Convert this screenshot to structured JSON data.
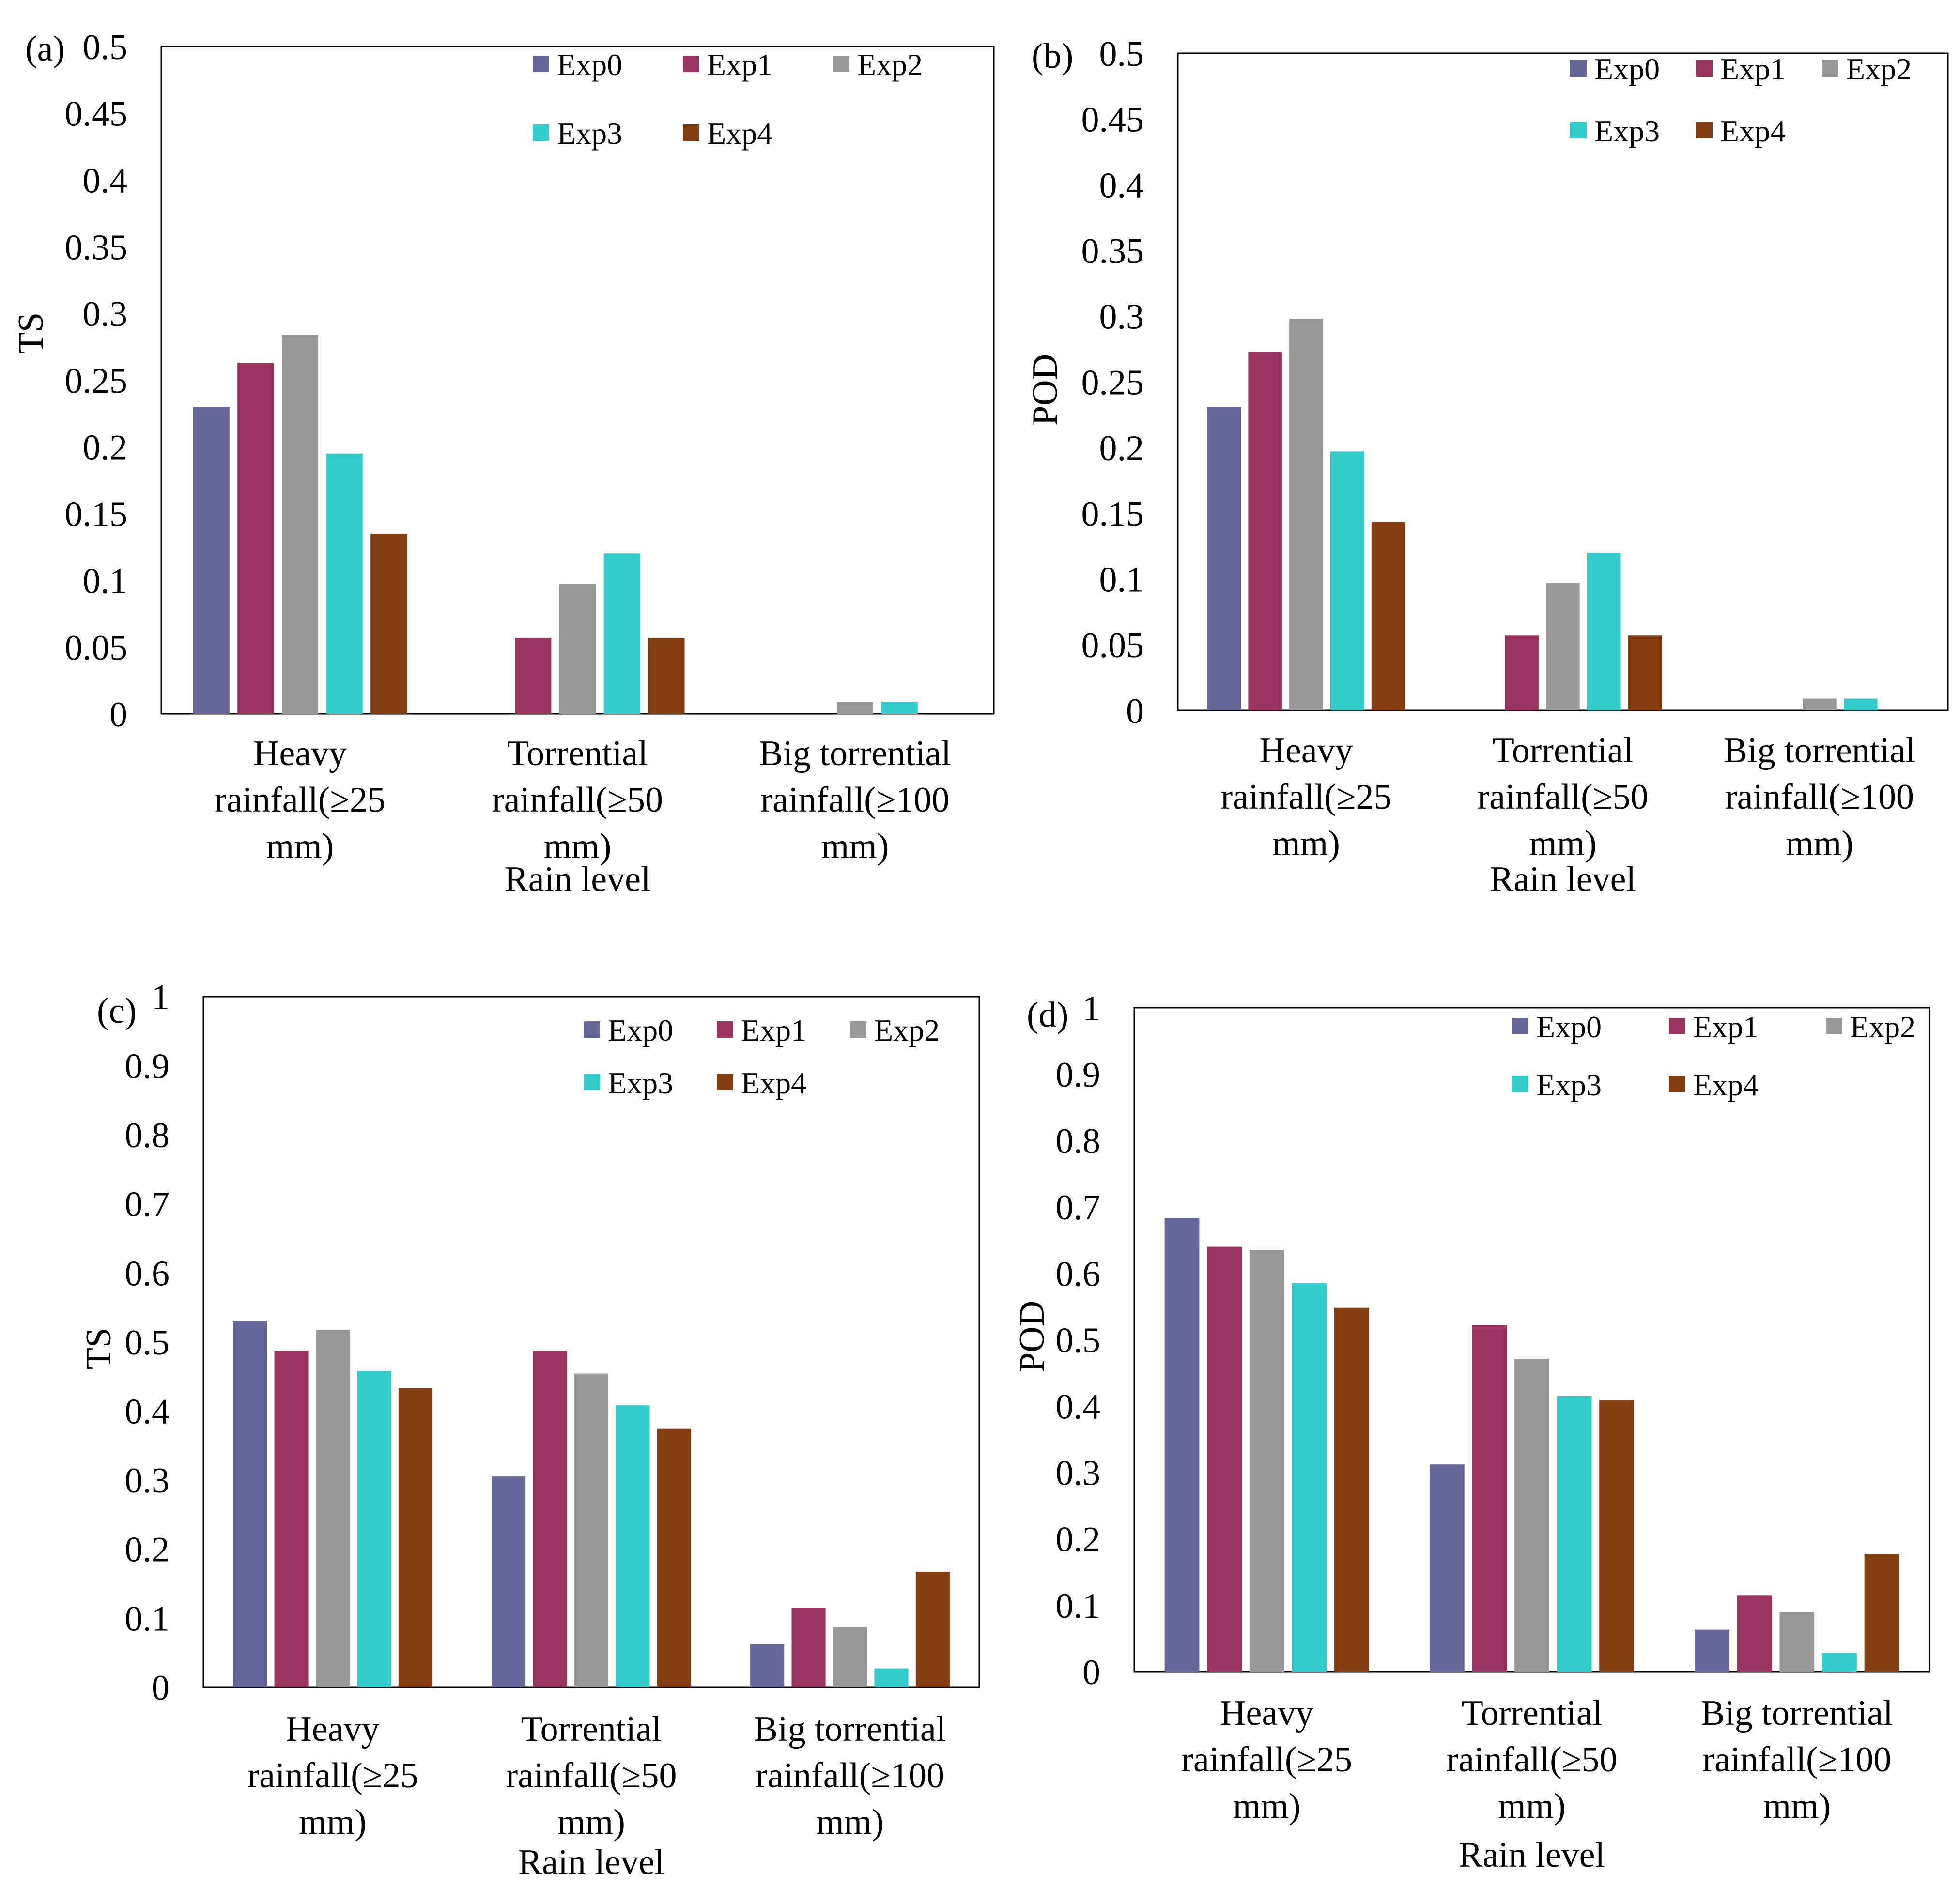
{
  "colors": {
    "Exp0": "#676799",
    "Exp1": "#9b3361",
    "Exp2": "#999999",
    "Exp3": "#33cccc",
    "Exp4": "#833d10"
  },
  "shared": {
    "xlabel": "Rain level",
    "category_lines": [
      [
        "Heavy",
        "rainfall(≥25",
        "mm)"
      ],
      [
        "Torrential",
        "rainfall(≥50",
        "mm)"
      ],
      [
        "Big torrential",
        "rainfall(≥100",
        "mm)"
      ]
    ]
  },
  "chart_data": [
    {
      "panel_label": "(a)",
      "type": "bar",
      "ylabel": "TS",
      "xlabel": "Rain level",
      "ylim": [
        0,
        0.5
      ],
      "yticks": [
        "0",
        "0.05",
        "0.1",
        "0.15",
        "0.2",
        "0.25",
        "0.3",
        "0.35",
        "0.4",
        "0.45",
        "0.5"
      ],
      "categories": [
        "Heavy rainfall(≥25 mm)",
        "Torrential rainfall(≥50 mm)",
        "Big torrential rainfall(≥100 mm)"
      ],
      "legend_position": "top-right",
      "series": [
        {
          "name": "Exp0",
          "values": [
            0.23,
            0,
            0
          ]
        },
        {
          "name": "Exp1",
          "values": [
            0.263,
            0.057,
            0
          ]
        },
        {
          "name": "Exp2",
          "values": [
            0.284,
            0.097,
            0.009
          ]
        },
        {
          "name": "Exp3",
          "values": [
            0.195,
            0.12,
            0.009
          ]
        },
        {
          "name": "Exp4",
          "values": [
            0.135,
            0.057,
            0
          ]
        }
      ]
    },
    {
      "panel_label": "(b)",
      "type": "bar",
      "ylabel": "POD",
      "xlabel": "Rain level",
      "ylim": [
        0,
        0.5
      ],
      "yticks": [
        "0",
        "0.05",
        "0.1",
        "0.15",
        "0.2",
        "0.25",
        "0.3",
        "0.35",
        "0.4",
        "0.45",
        "0.5"
      ],
      "categories": [
        "Heavy rainfall(≥25 mm)",
        "Torrential rainfall(≥50 mm)",
        "Big torrential rainfall(≥100 mm)"
      ],
      "legend_position": "top-right",
      "series": [
        {
          "name": "Exp0",
          "values": [
            0.231,
            0,
            0
          ]
        },
        {
          "name": "Exp1",
          "values": [
            0.273,
            0.057,
            0
          ]
        },
        {
          "name": "Exp2",
          "values": [
            0.298,
            0.097,
            0.009
          ]
        },
        {
          "name": "Exp3",
          "values": [
            0.197,
            0.12,
            0.009
          ]
        },
        {
          "name": "Exp4",
          "values": [
            0.143,
            0.057,
            0
          ]
        }
      ]
    },
    {
      "panel_label": "(c)",
      "type": "bar",
      "ylabel": "TS",
      "xlabel": "Rain level",
      "ylim": [
        0,
        1
      ],
      "yticks": [
        "0",
        "0.1",
        "0.2",
        "0.3",
        "0.4",
        "0.5",
        "0.6",
        "0.7",
        "0.8",
        "0.9",
        "1"
      ],
      "categories": [
        "Heavy rainfall(≥25 mm)",
        "Torrential rainfall(≥50 mm)",
        "Big torrential rainfall(≥100 mm)"
      ],
      "legend_position": "top-right",
      "series": [
        {
          "name": "Exp0",
          "values": [
            0.53,
            0.305,
            0.062
          ]
        },
        {
          "name": "Exp1",
          "values": [
            0.487,
            0.487,
            0.115
          ]
        },
        {
          "name": "Exp2",
          "values": [
            0.517,
            0.454,
            0.087
          ]
        },
        {
          "name": "Exp3",
          "values": [
            0.458,
            0.408,
            0.027
          ]
        },
        {
          "name": "Exp4",
          "values": [
            0.433,
            0.374,
            0.167
          ]
        }
      ]
    },
    {
      "panel_label": "(d)",
      "type": "bar",
      "ylabel": "POD",
      "xlabel": "Rain level",
      "ylim": [
        0,
        1
      ],
      "yticks": [
        "0",
        "0.1",
        "0.2",
        "0.3",
        "0.4",
        "0.5",
        "0.6",
        "0.7",
        "0.8",
        "0.9",
        "1"
      ],
      "categories": [
        "Heavy rainfall(≥25 mm)",
        "Torrential rainfall(≥50 mm)",
        "Big torrential rainfall(≥100 mm)"
      ],
      "legend_position": "top-right",
      "series": [
        {
          "name": "Exp0",
          "values": [
            0.683,
            0.312,
            0.063
          ]
        },
        {
          "name": "Exp1",
          "values": [
            0.64,
            0.522,
            0.115
          ]
        },
        {
          "name": "Exp2",
          "values": [
            0.635,
            0.471,
            0.09
          ]
        },
        {
          "name": "Exp3",
          "values": [
            0.585,
            0.415,
            0.028
          ]
        },
        {
          "name": "Exp4",
          "values": [
            0.548,
            0.409,
            0.177
          ]
        }
      ]
    }
  ]
}
